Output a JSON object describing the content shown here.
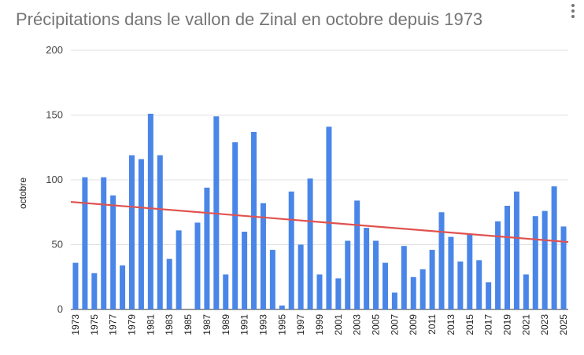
{
  "chart_data": {
    "type": "bar",
    "title": "Précipitations dans le vallon de Zinal en octobre depuis 1973",
    "ylabel": "octobre",
    "xlabel": "",
    "ylim": [
      0,
      200
    ],
    "yticks": [
      "0",
      "50",
      "100",
      "150",
      "200"
    ],
    "grid": true,
    "legend": "none",
    "bar_color": "#4a86e8",
    "trendline_color": "#e0524f",
    "categories": [
      "1973",
      "1974",
      "1975",
      "1976",
      "1977",
      "1978",
      "1979",
      "1980",
      "1981",
      "1982",
      "1983",
      "1984",
      "1985",
      "1986",
      "1987",
      "1988",
      "1989",
      "1990",
      "1991",
      "1992",
      "1993",
      "1994",
      "1995",
      "1996",
      "1997",
      "1998",
      "1999",
      "2000",
      "2001",
      "2002",
      "2003",
      "2004",
      "2005",
      "2006",
      "2007",
      "2008",
      "2009",
      "2010",
      "2011",
      "2012",
      "2013",
      "2014",
      "2015",
      "2016",
      "2017",
      "2018",
      "2019",
      "2020",
      "2021",
      "2022",
      "2023",
      "2024",
      "2025"
    ],
    "x_tick_labels": [
      "1973",
      "1975",
      "1977",
      "1979",
      "1981",
      "1983",
      "1985",
      "1987",
      "1989",
      "1991",
      "1993",
      "1995",
      "1997",
      "1999",
      "2001",
      "2003",
      "2005",
      "2007",
      "2009",
      "2011",
      "2013",
      "2015",
      "2017",
      "2019",
      "2021",
      "2023",
      "2025"
    ],
    "values": [
      36,
      102,
      28,
      102,
      88,
      34,
      119,
      116,
      151,
      119,
      39,
      61,
      0,
      67,
      94,
      149,
      27,
      129,
      60,
      137,
      82,
      46,
      3,
      91,
      50,
      101,
      27,
      141,
      24,
      53,
      84,
      63,
      53,
      36,
      13,
      49,
      25,
      31,
      46,
      75,
      56,
      37,
      58,
      38,
      21,
      68,
      80,
      91,
      27,
      72,
      76,
      95,
      64
    ],
    "trendline": {
      "start": 83,
      "end": 52
    }
  }
}
